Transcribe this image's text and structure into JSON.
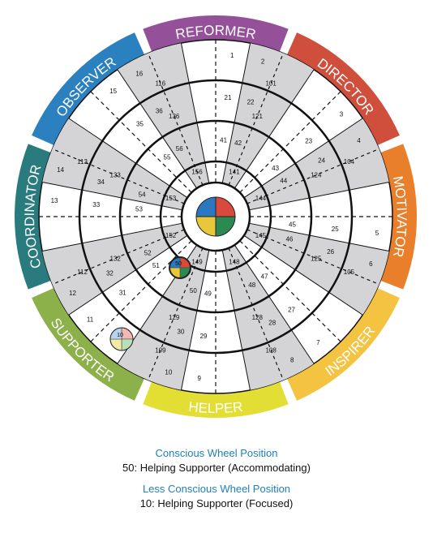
{
  "sectors": [
    {
      "label": "REFORMER",
      "color": "#94519a"
    },
    {
      "label": "DIRECTOR",
      "color": "#cf4f3c"
    },
    {
      "label": "MOTIVATOR",
      "color": "#e97f2b"
    },
    {
      "label": "INSPIRER",
      "color": "#f4c341"
    },
    {
      "label": "HELPER",
      "color": "#e3de33"
    },
    {
      "label": "SUPPORTER",
      "color": "#8cb04a"
    },
    {
      "label": "COORDINATOR",
      "color": "#2a7b7e"
    },
    {
      "label": "OBSERVER",
      "color": "#2b80c0"
    }
  ],
  "rings": {
    "outer": [
      "1",
      "2",
      "3",
      "4",
      "5",
      "6",
      "7",
      "8",
      "9",
      "10",
      "11",
      "12",
      "13",
      "14",
      "15",
      "16"
    ],
    "r4": [
      "21",
      "22",
      "23",
      "24",
      "25",
      "26",
      "27",
      "28",
      "29",
      "30",
      "31",
      "32",
      "33",
      "34",
      "35",
      "36"
    ],
    "r3": [
      "41",
      "42",
      "43",
      "44",
      "45",
      "46",
      "47",
      "48",
      "49",
      "50",
      "51",
      "52",
      "53",
      "54",
      "55",
      "56"
    ],
    "shaded_outer": [
      "101",
      "104",
      "105",
      "108",
      "109",
      "112",
      "113",
      "116"
    ],
    "shaded_mid": [
      "121",
      "124",
      "125",
      "128",
      "129",
      "132",
      "133",
      "136"
    ],
    "shaded_inner": [
      "141",
      "144",
      "145",
      "148",
      "149",
      "152",
      "153",
      "156"
    ]
  },
  "center_colors": [
    "#d94a3c",
    "#2a8a52",
    "#e8c83a",
    "#2b78c0"
  ],
  "markers": {
    "conscious": {
      "number": "50",
      "colors": [
        "#d94a3c",
        "#2a8a52",
        "#e8c83a",
        "#2b78c0"
      ]
    },
    "less_conscious": {
      "number": "10",
      "colors": [
        "#f2b8b3",
        "#b9dfb9",
        "#f5e9a8",
        "#b8d3ee"
      ]
    }
  },
  "captions": {
    "conscious_title": "Conscious Wheel Position",
    "conscious_value": "50: Helping Supporter (Accommodating)",
    "less_title": "Less Conscious Wheel Position",
    "less_value": "10: Helping Supporter (Focused)"
  }
}
